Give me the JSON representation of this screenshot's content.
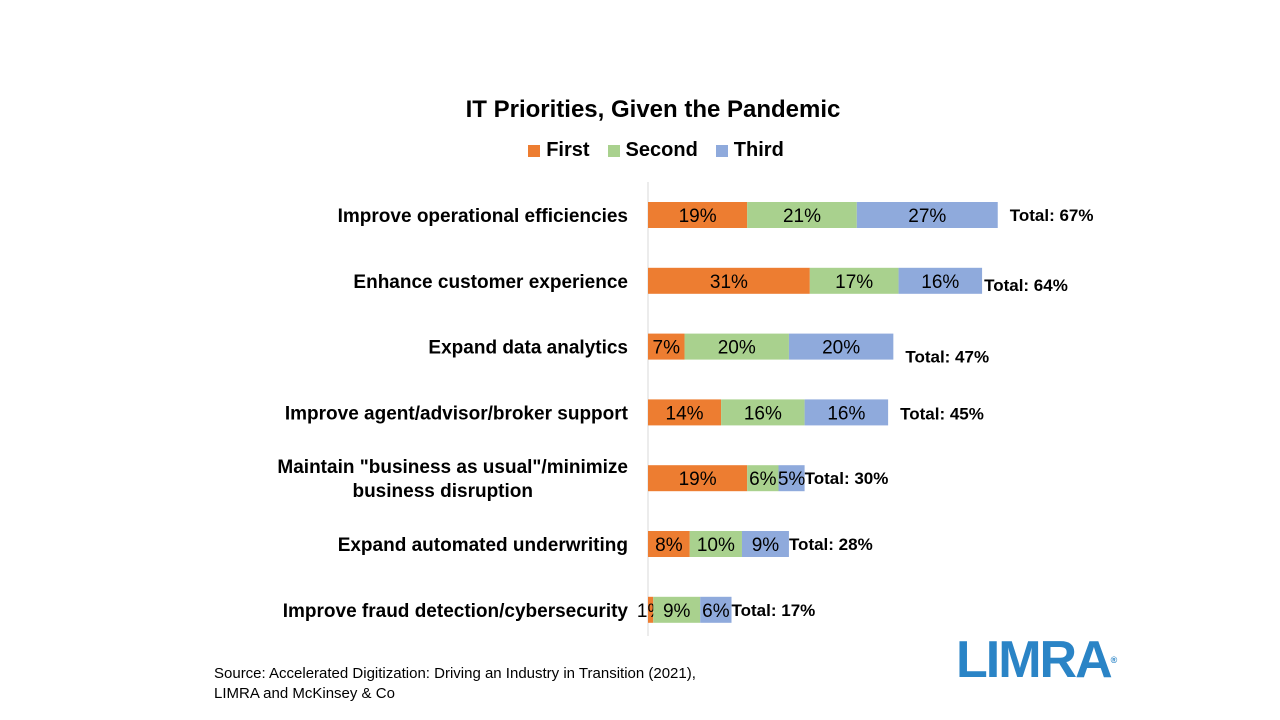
{
  "chart_data": {
    "type": "bar",
    "orientation": "horizontal",
    "stacked": true,
    "title": "IT Priorities, Given the Pandemic",
    "legend_position": "top",
    "categories": [
      [
        "Improve operational efficiencies"
      ],
      [
        "Enhance customer experience"
      ],
      [
        "Expand data analytics"
      ],
      [
        "Improve agent/advisor/broker support"
      ],
      [
        "Maintain \"business as usual\"/minimize",
        "business disruption"
      ],
      [
        "Expand automated underwriting"
      ],
      [
        "Improve fraud detection/cybersecurity"
      ]
    ],
    "series": [
      {
        "name": "First",
        "color": "#ed7d31",
        "values": [
          19,
          31,
          7,
          14,
          19,
          8,
          1
        ],
        "labels": [
          "19%",
          "31%",
          "7%",
          "14%",
          "19%",
          "8%",
          "1%"
        ]
      },
      {
        "name": "Second",
        "color": "#a9d18e",
        "values": [
          21,
          17,
          20,
          16,
          6,
          10,
          9
        ],
        "labels": [
          "21%",
          "17%",
          "20%",
          "16%",
          "6%",
          "10%",
          "9%"
        ]
      },
      {
        "name": "Third",
        "color": "#8faadc",
        "values": [
          27,
          16,
          20,
          16,
          5,
          9,
          6
        ],
        "labels": [
          "27%",
          "16%",
          "20%",
          "16%",
          "5%",
          "9%",
          "6%"
        ]
      }
    ],
    "totals": [
      "Total: 67%",
      "Total: 64%",
      "Total: 47%",
      "Total: 45%",
      "Total: 30%",
      "Total: 28%",
      "Total: 17%"
    ],
    "grid": false,
    "axis_labels_visible": false
  },
  "source": {
    "line1": "Source: Accelerated Digitization: Driving an Industry  in Transition (2021),",
    "line2": "LIMRA and McKinsey & Co"
  },
  "logo": {
    "text": "LIMRA",
    "mark": "®",
    "color": "#2a84c6"
  }
}
